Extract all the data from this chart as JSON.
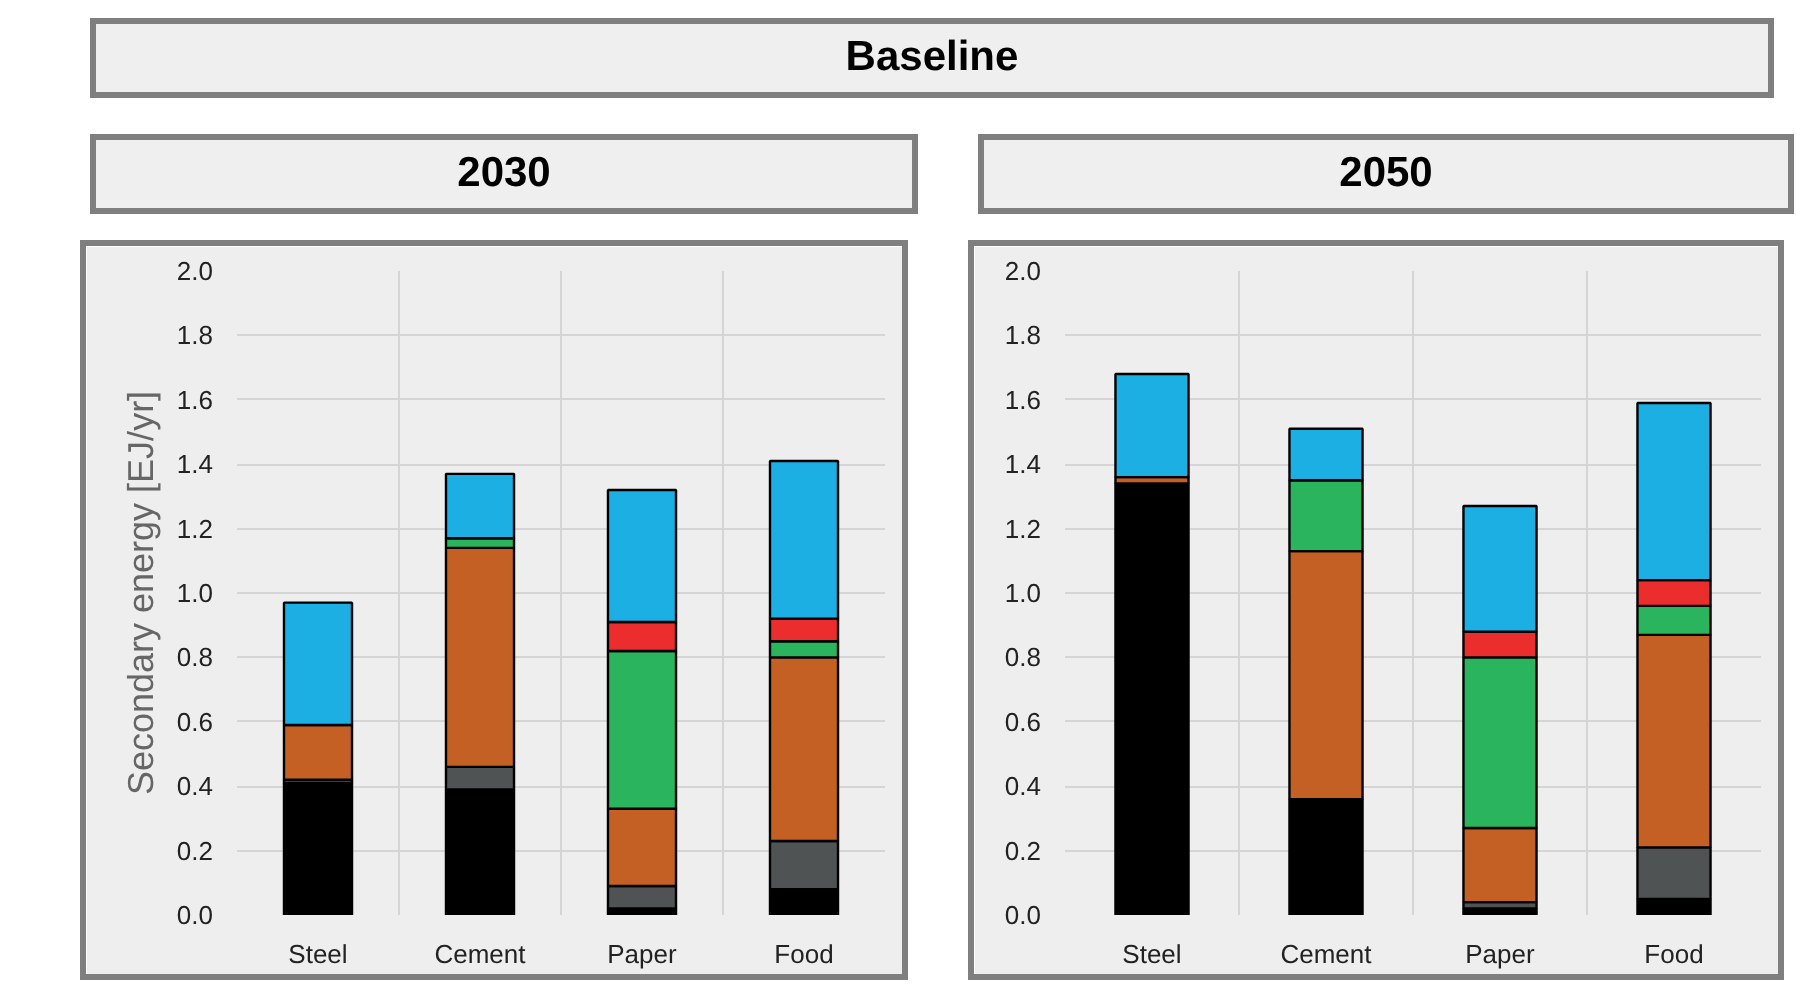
{
  "chart_data": [
    {
      "type": "bar",
      "stacked": true,
      "title": "2030",
      "annotations": [
        "Baseline"
      ],
      "ylabel": "Secondary energy [EJ/yr]",
      "categories": [
        "Steel",
        "Cement",
        "Paper",
        "Food"
      ],
      "ylim": [
        0,
        2.0
      ],
      "yticks": [
        {
          "value": 0,
          "label": "0.0"
        },
        {
          "value": 0.2,
          "label": "0.2"
        },
        {
          "value": 0.4,
          "label": "0.4"
        },
        {
          "value": 0.6,
          "label": "0.6"
        },
        {
          "value": 0.8,
          "label": "0.8"
        },
        {
          "value": 1.0,
          "label": "1.0"
        },
        {
          "value": 1.2,
          "label": "1.2"
        },
        {
          "value": 1.4,
          "label": "1.4"
        },
        {
          "value": 1.6,
          "label": "1.6"
        },
        {
          "value": 1.8,
          "label": "1.8"
        },
        {
          "value": 2.0,
          "label": "2.0"
        }
      ],
      "grid": true,
      "series": [
        {
          "color": "#000000",
          "values": [
            0.41,
            0.39,
            0.02,
            0.08
          ]
        },
        {
          "color": "#505354",
          "values": [
            0.01,
            0.07,
            0.07,
            0.15
          ]
        },
        {
          "color": "#c46024",
          "values": [
            0.17,
            0.68,
            0.24,
            0.57
          ]
        },
        {
          "color": "#2ab45e",
          "values": [
            null,
            0.03,
            0.49,
            0.05
          ]
        },
        {
          "color": "#ec2d2d",
          "values": [
            null,
            null,
            0.09,
            0.07
          ]
        },
        {
          "color": "#1bafe3",
          "values": [
            0.38,
            0.2,
            0.41,
            0.49
          ]
        }
      ]
    },
    {
      "type": "bar",
      "stacked": true,
      "title": "2050",
      "categories": [
        "Steel",
        "Cement",
        "Paper",
        "Food"
      ],
      "ylim": [
        0,
        2.0
      ],
      "yticks": [
        {
          "value": 0,
          "label": "0.0"
        },
        {
          "value": 0.2,
          "label": "0.2"
        },
        {
          "value": 0.4,
          "label": "0.4"
        },
        {
          "value": 0.6,
          "label": "0.6"
        },
        {
          "value": 0.8,
          "label": "0.8"
        },
        {
          "value": 1.0,
          "label": "1.0"
        },
        {
          "value": 1.2,
          "label": "1.2"
        },
        {
          "value": 1.4,
          "label": "1.4"
        },
        {
          "value": 1.6,
          "label": "1.6"
        },
        {
          "value": 1.8,
          "label": "1.8"
        },
        {
          "value": 2.0,
          "label": "2.0"
        }
      ],
      "grid": true,
      "series": [
        {
          "color": "#000000",
          "values": [
            1.34,
            0.36,
            0.02,
            0.05
          ]
        },
        {
          "color": "#505354",
          "values": [
            null,
            null,
            0.02,
            0.16
          ]
        },
        {
          "color": "#c46024",
          "values": [
            0.02,
            0.77,
            0.23,
            0.66
          ]
        },
        {
          "color": "#2ab45e",
          "values": [
            null,
            0.22,
            0.53,
            0.09
          ]
        },
        {
          "color": "#ec2d2d",
          "values": [
            null,
            null,
            0.08,
            0.08
          ]
        },
        {
          "color": "#1bafe3",
          "values": [
            0.32,
            0.16,
            0.39,
            0.55
          ]
        }
      ]
    }
  ]
}
